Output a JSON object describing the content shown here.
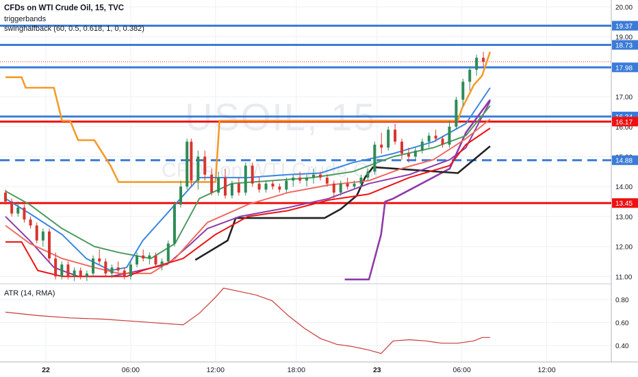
{
  "header": {
    "title": "CFDs on WTI Crude Oil, 15, TVC",
    "indicator1": "triggerbands",
    "indicator2": "swinghalfback (60, 0.5, 0.618, 1, 0, 0.382)"
  },
  "watermark": {
    "symbol": "USOIL, 15",
    "name": "CFDs on WTI Crude Oil"
  },
  "atr_label": "ATR (14, RMA)",
  "colors": {
    "blue_level": "#3b7bd8",
    "red_level": "#ee1111",
    "orange": "#f59a2a",
    "candle_up": "#2e8b57",
    "candle_down": "#d8352e",
    "purple": "#8e3aa8",
    "black": "#222222",
    "green_ma": "#4d9a5f",
    "blue_ma": "#3a85e0",
    "salmon": "#f06b5f",
    "atr": "#c83a3a"
  },
  "chart_data": [
    {
      "type": "candlestick",
      "ylim": [
        10.8,
        20.2
      ],
      "y_ticks": [
        "11.00",
        "12.00",
        "13.00",
        "14.00",
        "15.00",
        "16.00",
        "17.00",
        "18.00",
        "19.00",
        "20.00"
      ],
      "x_ticks": [
        "22",
        "06:00",
        "12:00",
        "18:00",
        "23",
        "06:00",
        "12:00"
      ],
      "horizontal_levels": [
        {
          "value": 19.37,
          "label": "19.37",
          "color": "#3b7bd8",
          "style": "solid"
        },
        {
          "value": 18.73,
          "label": "18.73",
          "color": "#3b7bd8",
          "style": "solid"
        },
        {
          "value": 17.98,
          "label": "17.98",
          "color": "#3b7bd8",
          "style": "solid"
        },
        {
          "value": 16.34,
          "label": "16.34",
          "color": "#3b7bd8",
          "style": "solid"
        },
        {
          "value": 16.17,
          "label": "16.17",
          "color": "#ee1111",
          "style": "solid"
        },
        {
          "value": 14.88,
          "label": "14.88",
          "color": "#3b7bd8",
          "style": "dashed"
        },
        {
          "value": 13.45,
          "label": "13.45",
          "color": "#ee1111",
          "style": "solid"
        }
      ],
      "last_price": 18.17,
      "series": [
        {
          "name": "",
          "color": "#f59a2a",
          "points": [
            [
              0,
              17.65
            ],
            [
              4,
              17.65
            ],
            [
              5,
              17.3
            ],
            [
              12,
              17.3
            ],
            [
              14,
              16.2
            ],
            [
              16,
              16.2
            ],
            [
              18,
              15.55
            ],
            [
              22,
              15.55
            ],
            [
              26,
              14.7
            ],
            [
              28,
              14.15
            ],
            [
              52,
              14.15
            ],
            [
              53,
              16.2
            ],
            [
              112,
              16.2
            ],
            [
              113,
              16.6
            ],
            [
              116,
              17.4
            ],
            [
              118,
              17.7
            ],
            [
              120,
              18.5
            ]
          ]
        },
        {
          "name": "",
          "color": "#8e3aa8",
          "points": [
            [
              84,
              10.9
            ],
            [
              90,
              10.9
            ],
            [
              93,
              12.4
            ],
            [
              94,
              13.5
            ],
            [
              96,
              13.6
            ],
            [
              110,
              14.6
            ],
            [
              114,
              15.8
            ],
            [
              120,
              16.9
            ]
          ]
        },
        {
          "name": "",
          "color": "#222222",
          "points": [
            [
              47,
              11.55
            ],
            [
              55,
              12.2
            ],
            [
              57,
              12.95
            ],
            [
              79,
              12.95
            ],
            [
              83,
              13.25
            ],
            [
              87,
              13.7
            ],
            [
              89,
              14.3
            ],
            [
              91,
              14.65
            ],
            [
              112,
              14.45
            ],
            [
              116,
              14.9
            ],
            [
              120,
              15.35
            ]
          ]
        },
        {
          "name": "",
          "color": "#8e3aa8",
          "points": [
            [
              0,
              13.0
            ],
            [
              6,
              12.2
            ],
            [
              12,
              11.3
            ],
            [
              18,
              11.0
            ],
            [
              26,
              11.0
            ],
            [
              30,
              11.1
            ],
            [
              40,
              11.4
            ],
            [
              46,
              12.1
            ],
            [
              50,
              12.6
            ],
            [
              58,
              13.0
            ],
            [
              70,
              13.3
            ],
            [
              80,
              13.6
            ],
            [
              90,
              14.1
            ],
            [
              100,
              14.4
            ],
            [
              110,
              14.9
            ],
            [
              114,
              15.3
            ],
            [
              120,
              16.85
            ]
          ]
        },
        {
          "name": "",
          "color": "#4d9a5f",
          "points": [
            [
              0,
              13.85
            ],
            [
              6,
              13.4
            ],
            [
              14,
              12.6
            ],
            [
              22,
              12.0
            ],
            [
              28,
              11.8
            ],
            [
              36,
              11.6
            ],
            [
              42,
              12.1
            ],
            [
              48,
              13.6
            ],
            [
              56,
              14.1
            ],
            [
              66,
              14.2
            ],
            [
              76,
              14.3
            ],
            [
              86,
              14.5
            ],
            [
              96,
              15.0
            ],
            [
              106,
              15.3
            ],
            [
              114,
              15.7
            ],
            [
              120,
              16.7
            ]
          ]
        },
        {
          "name": "",
          "color": "#3a85e0",
          "points": [
            [
              0,
              13.6
            ],
            [
              6,
              13.1
            ],
            [
              14,
              12.4
            ],
            [
              20,
              11.6
            ],
            [
              26,
              11.2
            ],
            [
              30,
              11.3
            ],
            [
              34,
              12.2
            ],
            [
              42,
              13.4
            ],
            [
              48,
              14.3
            ],
            [
              60,
              14.3
            ],
            [
              70,
              14.4
            ],
            [
              78,
              14.45
            ],
            [
              86,
              14.8
            ],
            [
              96,
              15.1
            ],
            [
              106,
              15.5
            ],
            [
              114,
              16.1
            ],
            [
              120,
              17.3
            ]
          ]
        },
        {
          "name": "",
          "color": "#f06b5f",
          "points": [
            [
              0,
              12.7
            ],
            [
              6,
              12.1
            ],
            [
              14,
              11.6
            ],
            [
              22,
              11.3
            ],
            [
              28,
              11.1
            ],
            [
              36,
              11.1
            ],
            [
              42,
              11.6
            ],
            [
              50,
              12.8
            ],
            [
              60,
              13.4
            ],
            [
              70,
              13.8
            ],
            [
              80,
              14.05
            ],
            [
              90,
              14.2
            ],
            [
              98,
              14.6
            ],
            [
              106,
              14.9
            ],
            [
              114,
              15.6
            ],
            [
              120,
              16.25
            ]
          ]
        },
        {
          "name": "",
          "color": "#ee1111",
          "points": [
            [
              0,
              12.15
            ],
            [
              4,
              12.15
            ],
            [
              8,
              11.2
            ],
            [
              14,
              11.0
            ],
            [
              30,
              11.0
            ],
            [
              34,
              11.2
            ],
            [
              44,
              11.6
            ],
            [
              52,
              12.4
            ],
            [
              60,
              13.0
            ],
            [
              70,
              13.2
            ],
            [
              80,
              13.55
            ],
            [
              90,
              13.75
            ],
            [
              100,
              14.3
            ],
            [
              110,
              14.7
            ],
            [
              114,
              15.4
            ],
            [
              120,
              15.95
            ]
          ]
        }
      ],
      "candles": [
        [
          13.8,
          13.9,
          13.4,
          13.5
        ],
        [
          13.5,
          13.6,
          13.0,
          13.1
        ],
        [
          13.1,
          13.5,
          13.0,
          13.3
        ],
        [
          13.3,
          13.4,
          12.8,
          12.9
        ],
        [
          12.9,
          13.0,
          12.6,
          12.7
        ],
        [
          12.7,
          12.8,
          12.1,
          12.2
        ],
        [
          12.2,
          12.6,
          12.0,
          12.5
        ],
        [
          12.5,
          12.6,
          11.5,
          11.6
        ],
        [
          11.6,
          11.8,
          10.9,
          11.0
        ],
        [
          11.0,
          11.5,
          10.9,
          11.4
        ],
        [
          11.4,
          11.5,
          10.9,
          11.0
        ],
        [
          11.0,
          11.3,
          10.85,
          11.2
        ],
        [
          11.2,
          11.3,
          10.9,
          11.0
        ],
        [
          11.0,
          11.2,
          10.85,
          11.1
        ],
        [
          11.1,
          11.7,
          11.0,
          11.6
        ],
        [
          11.6,
          11.9,
          11.4,
          11.5
        ],
        [
          11.5,
          11.6,
          11.0,
          11.1
        ],
        [
          11.1,
          11.4,
          10.95,
          11.3
        ],
        [
          11.3,
          11.5,
          11.1,
          11.2
        ],
        [
          11.2,
          11.3,
          10.9,
          11.0
        ],
        [
          11.0,
          11.5,
          10.9,
          11.4
        ],
        [
          11.4,
          11.8,
          11.3,
          11.7
        ],
        [
          11.7,
          11.9,
          11.5,
          11.6
        ],
        [
          11.6,
          11.8,
          11.4,
          11.7
        ],
        [
          11.7,
          11.8,
          11.3,
          11.4
        ],
        [
          11.4,
          11.6,
          11.2,
          11.5
        ],
        [
          11.5,
          12.2,
          11.4,
          12.1
        ],
        [
          12.1,
          13.5,
          12.0,
          13.4
        ],
        [
          13.4,
          14.2,
          13.3,
          14.0
        ],
        [
          14.0,
          15.6,
          13.9,
          15.5
        ],
        [
          15.5,
          15.6,
          14.0,
          14.2
        ],
        [
          14.2,
          15.2,
          13.9,
          15.0
        ],
        [
          15.0,
          15.2,
          14.2,
          14.4
        ],
        [
          14.4,
          14.6,
          13.7,
          13.8
        ],
        [
          13.8,
          14.5,
          13.7,
          14.3
        ],
        [
          14.3,
          14.6,
          13.6,
          13.7
        ],
        [
          13.7,
          14.2,
          13.6,
          14.1
        ],
        [
          14.1,
          14.3,
          13.7,
          13.8
        ],
        [
          13.8,
          14.8,
          13.7,
          14.7
        ],
        [
          14.7,
          14.8,
          14.0,
          14.1
        ],
        [
          14.1,
          14.3,
          13.8,
          13.9
        ],
        [
          13.9,
          14.2,
          13.8,
          14.1
        ],
        [
          14.1,
          14.2,
          13.9,
          14.0
        ],
        [
          14.0,
          14.1,
          13.8,
          13.9
        ],
        [
          13.9,
          14.3,
          13.8,
          14.2
        ],
        [
          14.2,
          14.4,
          14.0,
          14.3
        ],
        [
          14.3,
          14.5,
          14.1,
          14.2
        ],
        [
          14.2,
          14.4,
          14.0,
          14.3
        ],
        [
          14.3,
          14.6,
          14.1,
          14.4
        ],
        [
          14.4,
          14.5,
          14.2,
          14.3
        ],
        [
          14.3,
          14.4,
          14.0,
          14.1
        ],
        [
          14.1,
          14.2,
          13.6,
          13.8
        ],
        [
          13.8,
          14.2,
          13.7,
          14.1
        ],
        [
          14.1,
          14.3,
          13.9,
          14.0
        ],
        [
          14.0,
          14.2,
          13.9,
          14.1
        ],
        [
          14.1,
          14.4,
          14.0,
          14.3
        ],
        [
          14.3,
          14.6,
          14.2,
          14.5
        ],
        [
          14.5,
          15.5,
          14.4,
          15.4
        ],
        [
          15.4,
          15.8,
          15.1,
          15.3
        ],
        [
          15.3,
          16.0,
          15.2,
          15.9
        ],
        [
          15.9,
          16.1,
          15.4,
          15.5
        ],
        [
          15.5,
          15.6,
          14.9,
          15.1
        ],
        [
          15.1,
          15.3,
          14.8,
          15.0
        ],
        [
          15.0,
          15.3,
          14.9,
          15.2
        ],
        [
          15.2,
          15.6,
          15.1,
          15.5
        ],
        [
          15.5,
          15.8,
          15.3,
          15.7
        ],
        [
          15.7,
          15.9,
          15.5,
          15.6
        ],
        [
          15.6,
          15.7,
          15.3,
          15.4
        ],
        [
          15.4,
          16.2,
          15.3,
          16.0
        ],
        [
          16.0,
          17.0,
          15.9,
          16.9
        ],
        [
          16.9,
          17.6,
          16.7,
          17.5
        ],
        [
          17.5,
          18.0,
          17.2,
          17.9
        ],
        [
          17.9,
          18.4,
          17.7,
          18.3
        ],
        [
          18.3,
          18.5,
          18.0,
          18.17
        ]
      ],
      "candle_index_range": [
        46,
        120
      ]
    },
    {
      "type": "line",
      "title": "ATR (14, RMA)",
      "ylim": [
        0.3,
        0.92
      ],
      "y_ticks": [
        "0.40",
        "0.60",
        "0.80"
      ],
      "series": [
        {
          "name": "",
          "color": "#c83a3a",
          "points": [
            [
              0,
              0.69
            ],
            [
              8,
              0.66
            ],
            [
              16,
              0.64
            ],
            [
              24,
              0.63
            ],
            [
              32,
              0.61
            ],
            [
              40,
              0.59
            ],
            [
              44,
              0.58
            ],
            [
              48,
              0.68
            ],
            [
              52,
              0.82
            ],
            [
              54,
              0.9
            ],
            [
              58,
              0.87
            ],
            [
              62,
              0.84
            ],
            [
              66,
              0.79
            ],
            [
              70,
              0.66
            ],
            [
              74,
              0.55
            ],
            [
              78,
              0.46
            ],
            [
              82,
              0.41
            ],
            [
              86,
              0.39
            ],
            [
              90,
              0.36
            ],
            [
              93,
              0.33
            ],
            [
              96,
              0.44
            ],
            [
              100,
              0.45
            ],
            [
              104,
              0.44
            ],
            [
              108,
              0.42
            ],
            [
              112,
              0.42
            ],
            [
              116,
              0.44
            ],
            [
              118,
              0.47
            ],
            [
              120,
              0.47
            ]
          ]
        }
      ]
    }
  ]
}
